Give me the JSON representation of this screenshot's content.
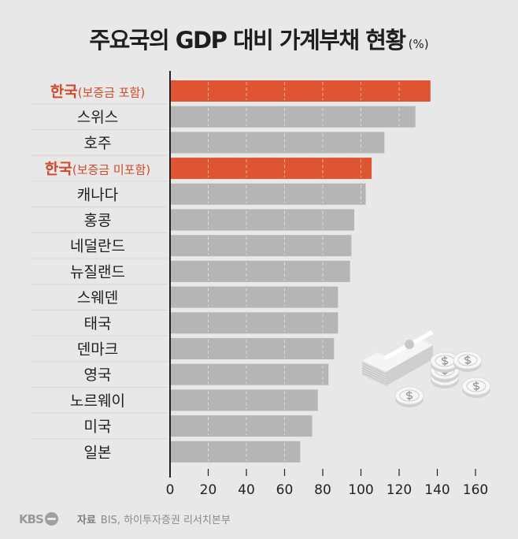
{
  "header": {
    "title": "주요국의 GDP 대비 가계부채 현황",
    "unit": "(%)"
  },
  "footer": {
    "brand": "KBS",
    "source_label": "자료",
    "source_text": "BIS, 하이투자증권 리서치본부"
  },
  "colors": {
    "highlight": "#df5433",
    "default_bar": "#b5b5b5",
    "highlight_label": "#d24a2b",
    "background": "#e8e8e8"
  },
  "illustration": {
    "icon": "money-stack-and-coins-icon"
  },
  "chart_data": {
    "type": "bar",
    "orientation": "horizontal",
    "title": "주요국의 GDP 대비 가계부채 현황 (%)",
    "xlabel": "",
    "ylabel": "",
    "xlim": [
      0,
      160
    ],
    "xticks": [
      0,
      20,
      40,
      60,
      80,
      100,
      120,
      140,
      160
    ],
    "grid": true,
    "categories": [
      {
        "main": "한국",
        "sub": "(보증금 포함)",
        "highlight": true
      },
      {
        "main": "스위스",
        "sub": "",
        "highlight": false
      },
      {
        "main": "호주",
        "sub": "",
        "highlight": false
      },
      {
        "main": "한국",
        "sub": "(보증금 미포함)",
        "highlight": true
      },
      {
        "main": "캐나다",
        "sub": "",
        "highlight": false
      },
      {
        "main": "홍콩",
        "sub": "",
        "highlight": false
      },
      {
        "main": "네덜란드",
        "sub": "",
        "highlight": false
      },
      {
        "main": "뉴질랜드",
        "sub": "",
        "highlight": false
      },
      {
        "main": "스웨덴",
        "sub": "",
        "highlight": false
      },
      {
        "main": "태국",
        "sub": "",
        "highlight": false
      },
      {
        "main": "덴마크",
        "sub": "",
        "highlight": false
      },
      {
        "main": "영국",
        "sub": "",
        "highlight": false
      },
      {
        "main": "노르웨이",
        "sub": "",
        "highlight": false
      },
      {
        "main": "미국",
        "sub": "",
        "highlight": false
      },
      {
        "main": "일본",
        "sub": "",
        "highlight": false
      }
    ],
    "values": [
      136.4,
      128.5,
      112.3,
      105.6,
      102.5,
      96.5,
      95.0,
      94.3,
      88.0,
      88.0,
      85.9,
      83.0,
      77.4,
      74.4,
      68.2
    ]
  }
}
